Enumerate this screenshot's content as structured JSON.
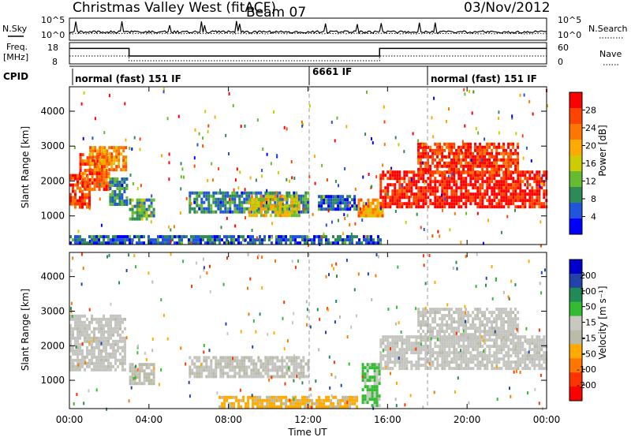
{
  "header": {
    "station": "Christmas Valley West (fitACF)",
    "beam": "Beam 07",
    "date": "03/Nov/2012"
  },
  "colors": {
    "power_scale": [
      "#0000ff",
      "#2255dd",
      "#2e8b57",
      "#66bb33",
      "#cccc00",
      "#ffaa00",
      "#ff7700",
      "#ff4400",
      "#ff0000"
    ],
    "velocity_scale": [
      "#0000cc",
      "#2244aa",
      "#228b55",
      "#33bb33",
      "#c8c8c0",
      "#bbbbaa",
      "#ffaa00",
      "#ff7700",
      "#ff3300",
      "#ff0000"
    ],
    "velocity_gray": "#c4c4c0"
  },
  "nsky_panel": {
    "left_label": "N.Sky",
    "right_label": "N.Search",
    "left_ticks": [
      "10^5",
      "10^0"
    ],
    "right_ticks": [
      "10^5",
      "10^0"
    ]
  },
  "freq_panel": {
    "left_label_1": "Freq.",
    "left_label_2": "[MHz]",
    "right_label": "Nave",
    "left_ticks": [
      "18",
      "8"
    ],
    "right_ticks": [
      "60",
      "0"
    ],
    "freq_segments": [
      {
        "start_h": 0.0,
        "end_h": 3.0,
        "freq_mhz": 16.7
      },
      {
        "start_h": 3.0,
        "end_h": 15.6,
        "freq_mhz": 11.3
      },
      {
        "start_h": 15.6,
        "end_h": 24.0,
        "freq_mhz": 16.7
      }
    ]
  },
  "cpid_panel": {
    "label": "CPID",
    "segments": [
      {
        "start_h": 0.0,
        "end_h": 12.0,
        "text": "normal (fast) 151 IF"
      },
      {
        "start_h": 12.0,
        "end_h": 18.0,
        "text": "6661 IF"
      },
      {
        "start_h": 18.0,
        "end_h": 24.0,
        "text": "normal (fast) 151 IF"
      }
    ]
  },
  "chart_data": [
    {
      "type": "heatmap",
      "name": "power",
      "ylabel": "Slant Range [km]",
      "ylim": [
        180,
        4700
      ],
      "yticks": [
        "1000",
        "2000",
        "3000",
        "4000"
      ],
      "colorbar": {
        "label": "Power [dB]",
        "ticks": [
          "4",
          "8",
          "12",
          "16",
          "20",
          "24",
          "28"
        ],
        "range": [
          0,
          30
        ]
      },
      "regions": [
        {
          "t0": 0.0,
          "t1": 1.0,
          "r0": 1250,
          "r1": 2200,
          "level": 26
        },
        {
          "t0": 0.5,
          "t1": 2.0,
          "r0": 1800,
          "r1": 2800,
          "level": 24
        },
        {
          "t0": 1.0,
          "t1": 2.8,
          "r0": 2300,
          "r1": 3000,
          "level": 20
        },
        {
          "t0": 2.0,
          "t1": 2.9,
          "r0": 1300,
          "r1": 2100,
          "level": 8
        },
        {
          "t0": 3.0,
          "t1": 4.2,
          "r0": 900,
          "r1": 1500,
          "level": 10
        },
        {
          "t0": 6.0,
          "t1": 12.0,
          "r0": 1100,
          "r1": 1700,
          "level": 8
        },
        {
          "t0": 9.0,
          "t1": 11.5,
          "r0": 1000,
          "r1": 1600,
          "level": 16
        },
        {
          "t0": 12.5,
          "t1": 14.5,
          "r0": 1200,
          "r1": 1600,
          "level": 6
        },
        {
          "t0": 14.5,
          "t1": 15.8,
          "r0": 1000,
          "r1": 1500,
          "level": 20
        },
        {
          "t0": 15.6,
          "t1": 24.0,
          "r0": 1250,
          "r1": 2300,
          "level": 28
        },
        {
          "t0": 17.5,
          "t1": 22.5,
          "r0": 2200,
          "r1": 3100,
          "level": 26
        },
        {
          "t0": 0.0,
          "t1": 15.6,
          "r0": 200,
          "r1": 450,
          "level": 6
        }
      ]
    },
    {
      "type": "heatmap",
      "name": "velocity",
      "ylabel": "Slant Range [km]",
      "xlabel": "Time UT",
      "ylim": [
        180,
        4700
      ],
      "yticks": [
        "1000",
        "2000",
        "3000",
        "4000"
      ],
      "xticks": [
        "00:00",
        "04:00",
        "08:00",
        "12:00",
        "16:00",
        "20:00",
        "00:00"
      ],
      "colorbar": {
        "label": "Velocity [m s⁻¹]",
        "ticks": [
          "200",
          "100",
          "50",
          "15",
          "-15",
          "-50",
          "-100",
          "-200"
        ],
        "range": [
          -250,
          250
        ]
      },
      "regions": [
        {
          "t0": 0.0,
          "t1": 2.8,
          "r0": 1300,
          "r1": 2900,
          "vel": 0
        },
        {
          "t0": 3.0,
          "t1": 4.2,
          "r0": 900,
          "r1": 1500,
          "vel": -20
        },
        {
          "t0": 6.0,
          "t1": 12.0,
          "r0": 1100,
          "r1": 1700,
          "vel": -10
        },
        {
          "t0": 7.5,
          "t1": 14.5,
          "r0": 250,
          "r1": 550,
          "vel": -60
        },
        {
          "t0": 14.7,
          "t1": 15.6,
          "r0": 300,
          "r1": 1500,
          "vel": 60
        },
        {
          "t0": 15.6,
          "t1": 24.0,
          "r0": 1300,
          "r1": 2300,
          "vel": 0
        },
        {
          "t0": 17.5,
          "t1": 22.5,
          "r0": 2200,
          "r1": 3100,
          "vel": 0
        }
      ]
    }
  ]
}
